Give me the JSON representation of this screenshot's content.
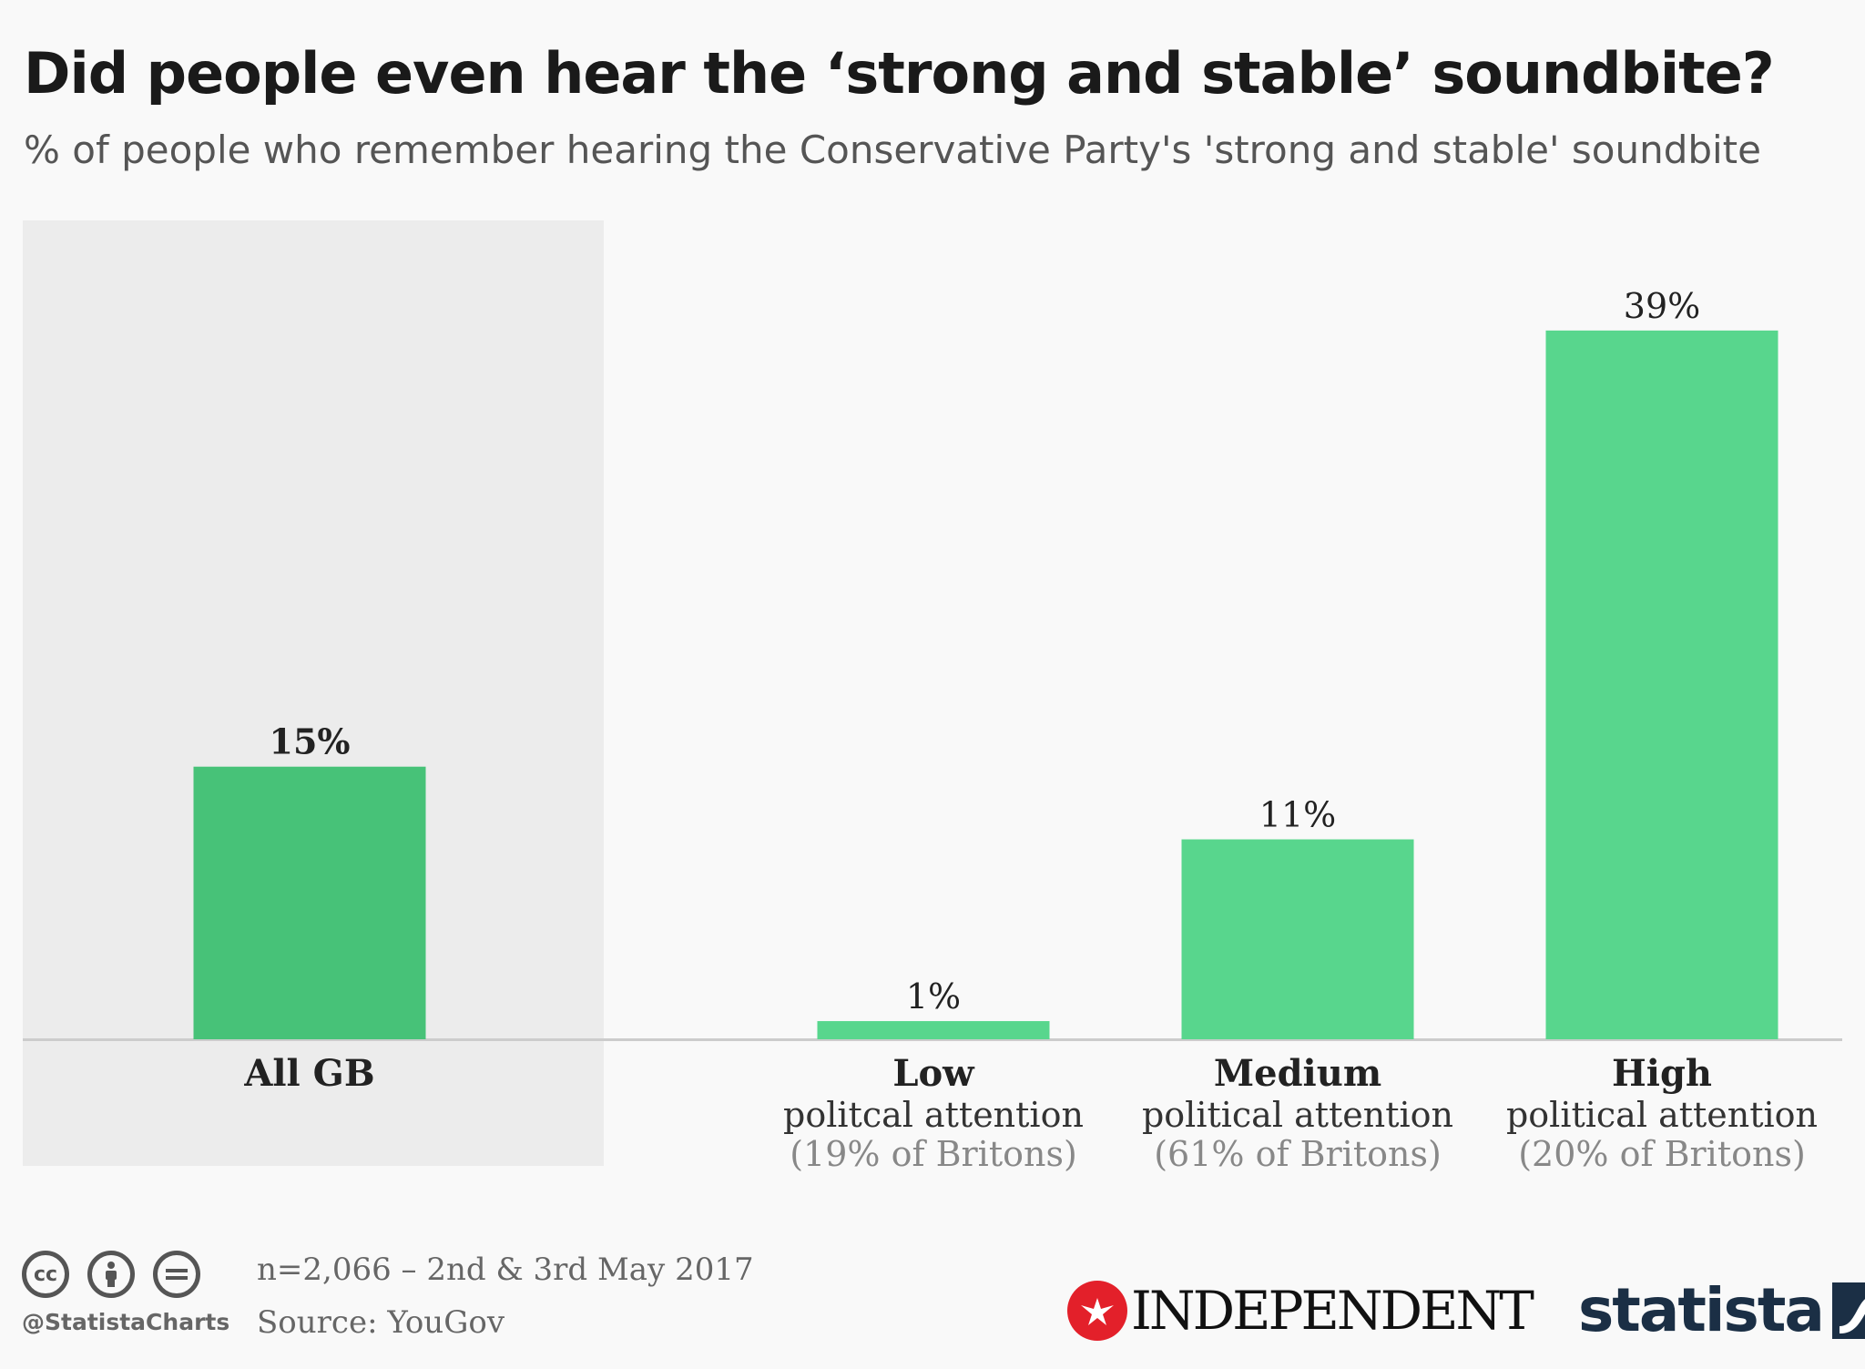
{
  "chart_data": {
    "type": "bar",
    "title": "Did people even hear the ‘strong and stable’ soundbite?",
    "subtitle": "% of people who remember hearing the Conservative Party's 'strong and stable' soundbite",
    "ylim": [
      0,
      42
    ],
    "grid": false,
    "categories": [
      {
        "name": "All GB",
        "line2": "",
        "line3": "",
        "highlighted": true
      },
      {
        "name": "Low",
        "line2": "politcal attention",
        "line3": "(19% of Britons)",
        "highlighted": false
      },
      {
        "name": "Medium",
        "line2": "political attention",
        "line3": "(61% of Britons)",
        "highlighted": false
      },
      {
        "name": "High",
        "line2": "political attention",
        "line3": "(20% of Britons)",
        "highlighted": false
      }
    ],
    "values": [
      15,
      1,
      11,
      39
    ],
    "value_labels": [
      "15%",
      "1%",
      "11%",
      "39%"
    ],
    "colors": {
      "highlight_bar": "#47c278",
      "bar": "#58d68d",
      "highlight_panel": "#ececec",
      "axis": "#cccccc"
    }
  },
  "footer": {
    "handle": "@StatistaCharts",
    "note": "n=2,066 – 2nd & 3rd May 2017",
    "source": "Source: YouGov",
    "license_icons": [
      "cc-icon",
      "by-icon",
      "nd-icon"
    ],
    "publisher_logo": "INDEPENDENT",
    "brand_logo": "statista"
  }
}
